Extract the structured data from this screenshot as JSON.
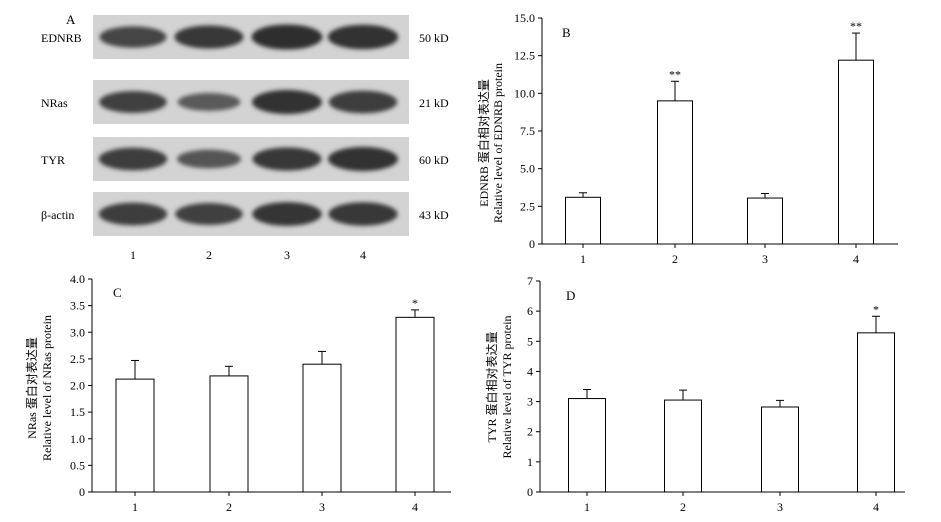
{
  "blot": {
    "panel_label": "A",
    "lanes": [
      "1",
      "2",
      "3",
      "4"
    ],
    "rows": [
      {
        "name": "EDNRB",
        "size": "50 kD",
        "intensity": [
          0.75,
          0.85,
          0.95,
          0.92
        ]
      },
      {
        "name": "NRas",
        "size": "21 kD",
        "intensity": [
          0.78,
          0.55,
          0.9,
          0.82
        ]
      },
      {
        "name": "TYR",
        "size": "60 kD",
        "intensity": [
          0.82,
          0.6,
          0.85,
          0.9
        ]
      },
      {
        "name": "β-actin",
        "size": "43 kD",
        "intensity": [
          0.82,
          0.78,
          0.88,
          0.86
        ]
      }
    ]
  },
  "chart_data": [
    {
      "panel": "B",
      "type": "bar",
      "categories": [
        "1",
        "2",
        "3",
        "4"
      ],
      "values": [
        3.1,
        9.5,
        3.05,
        12.2
      ],
      "errors": [
        0.3,
        1.3,
        0.3,
        1.8
      ],
      "significance": [
        "",
        "**",
        "",
        "**"
      ],
      "ylim": [
        0,
        15
      ],
      "yticks": [
        "0",
        "2.5",
        "5.0",
        "7.5",
        "10.0",
        "12.5",
        "15.0"
      ],
      "ylabel_cn": "EDNRB 蛋白相对表达量",
      "ylabel_en": "Relative level of EDNRB protein"
    },
    {
      "panel": "C",
      "type": "bar",
      "categories": [
        "1",
        "2",
        "3",
        "4"
      ],
      "values": [
        2.12,
        2.18,
        2.4,
        3.28
      ],
      "errors": [
        0.35,
        0.18,
        0.24,
        0.14
      ],
      "significance": [
        "",
        "",
        "",
        "*"
      ],
      "ylim": [
        0,
        4
      ],
      "yticks": [
        "0",
        "0.5",
        "1.0",
        "1.5",
        "2.0",
        "2.5",
        "3.0",
        "3.5",
        "4.0"
      ],
      "ylabel_cn": "NRas 蛋白对表达量",
      "ylabel_en": "Relative level of NRas protein"
    },
    {
      "panel": "D",
      "type": "bar",
      "categories": [
        "1",
        "2",
        "3",
        "4"
      ],
      "values": [
        3.1,
        3.05,
        2.82,
        5.28
      ],
      "errors": [
        0.3,
        0.33,
        0.22,
        0.55
      ],
      "significance": [
        "",
        "",
        "",
        "*"
      ],
      "ylim": [
        0,
        7
      ],
      "yticks": [
        "0",
        "1",
        "2",
        "3",
        "4",
        "5",
        "6",
        "7"
      ],
      "ylabel_cn": "TYR 蛋白相对表达量",
      "ylabel_en": "Relative level of TYR protein"
    }
  ]
}
